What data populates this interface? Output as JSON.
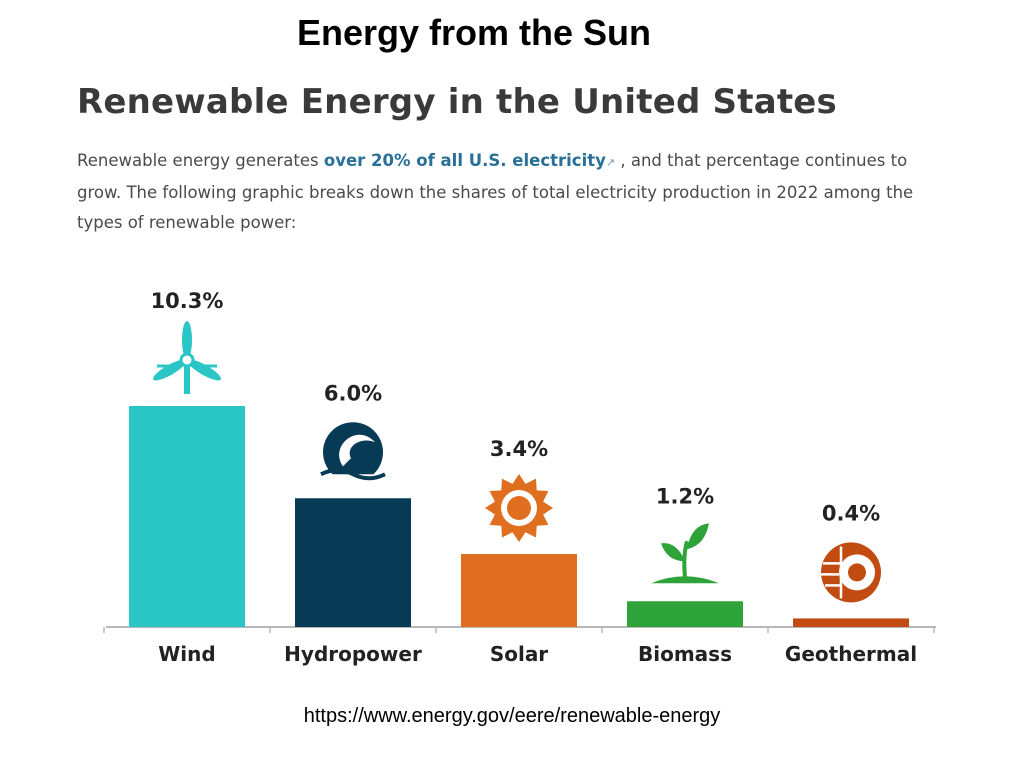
{
  "slide": {
    "title": "Energy from the Sun",
    "source_url": "https://www.energy.gov/eere/renewable-energy"
  },
  "article": {
    "heading": "Renewable Energy in the United States",
    "intro_before": "Renewable energy generates ",
    "intro_link": "over 20% of all U.S. electricity",
    "intro_after": " , and that percentage continues to grow. The following graphic breaks down the shares of total electricity production in 2022 among the types of renewable power:"
  },
  "chart_data": {
    "type": "bar",
    "categories": [
      "Wind",
      "Hydropower",
      "Solar",
      "Biomass",
      "Geothermal"
    ],
    "values": [
      10.3,
      6.0,
      3.4,
      1.2,
      0.4
    ],
    "value_labels": [
      "10.3%",
      "6.0%",
      "3.4%",
      "1.2%",
      "0.4%"
    ],
    "unit": "%",
    "colors": [
      "#2ac6c6",
      "#073b55",
      "#e06e1f",
      "#2ea33a",
      "#c24b12"
    ],
    "icons": [
      "wind-turbine-icon",
      "water-wave-icon",
      "sun-icon",
      "plant-sprout-icon",
      "geothermal-earth-icon"
    ],
    "ylim": [
      0,
      10.3
    ],
    "grid": false,
    "title": "",
    "xlabel": "",
    "ylabel": ""
  }
}
